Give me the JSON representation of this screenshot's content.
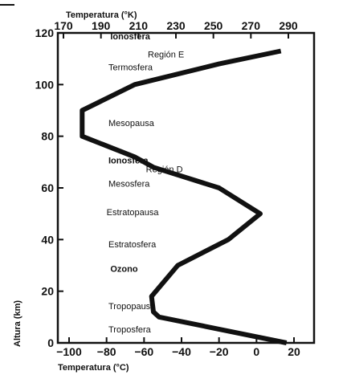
{
  "chart_data": {
    "type": "line",
    "title": "",
    "xlabel": "Temperatura (°C)",
    "xlabel_top": "Temperatura (°K)",
    "ylabel": "Altura (km)",
    "xlim": [
      -105,
      25
    ],
    "ylim": [
      0,
      120
    ],
    "x_ticks": [
      -100,
      -80,
      -60,
      -40,
      -20,
      0,
      20
    ],
    "x_tick_labels": [
      "−100",
      "−80",
      "−60",
      "−40",
      "−20",
      "0",
      "20"
    ],
    "x_top_ticks": [
      170,
      190,
      210,
      230,
      250,
      270,
      290
    ],
    "x_top_tick_labels": [
      "170",
      "190",
      "210",
      "230",
      "250",
      "270",
      "290"
    ],
    "y_ticks": [
      0,
      20,
      40,
      60,
      80,
      100,
      120
    ],
    "y_tick_labels": [
      "0",
      "20",
      "40",
      "60",
      "80",
      "100",
      "120"
    ],
    "grid": false,
    "series": [
      {
        "points": [
          [
            16,
            0
          ],
          [
            -52,
            10
          ],
          [
            -55,
            12
          ],
          [
            -56,
            18
          ],
          [
            -42,
            30
          ],
          [
            -15,
            40
          ],
          [
            2,
            50
          ],
          [
            -20,
            60
          ],
          [
            -55,
            68
          ],
          [
            -65,
            72
          ],
          [
            -93,
            80
          ],
          [
            -93,
            90
          ],
          [
            -65,
            100
          ],
          [
            -20,
            108
          ],
          [
            13,
            113
          ]
        ]
      }
    ],
    "annotations": [
      {
        "text": "Ionosfera",
        "bold": true,
        "x": -78,
        "y": 117.5
      },
      {
        "text": "Región E",
        "bold": false,
        "x": -58,
        "y": 110.5
      },
      {
        "text": "Termosfera",
        "bold": false,
        "x": -79,
        "y": 105.5
      },
      {
        "text": "Mesopausa",
        "bold": false,
        "x": -79,
        "y": 84
      },
      {
        "text": "Ionosfera",
        "bold": true,
        "x": -79,
        "y": 69.5
      },
      {
        "text": "Región D",
        "bold": false,
        "x": -59,
        "y": 66
      },
      {
        "text": "Mesosfera",
        "bold": false,
        "x": -79,
        "y": 60.5
      },
      {
        "text": "Estratopausa",
        "bold": false,
        "x": -80,
        "y": 49.5
      },
      {
        "text": "Estratosfera",
        "bold": false,
        "x": -79,
        "y": 37
      },
      {
        "text": "Ozono",
        "bold": true,
        "x": -78,
        "y": 27.5
      },
      {
        "text": "Tropopausa",
        "bold": false,
        "x": -79,
        "y": 13
      },
      {
        "text": "Troposfera",
        "bold": false,
        "x": -79,
        "y": 4
      }
    ]
  }
}
